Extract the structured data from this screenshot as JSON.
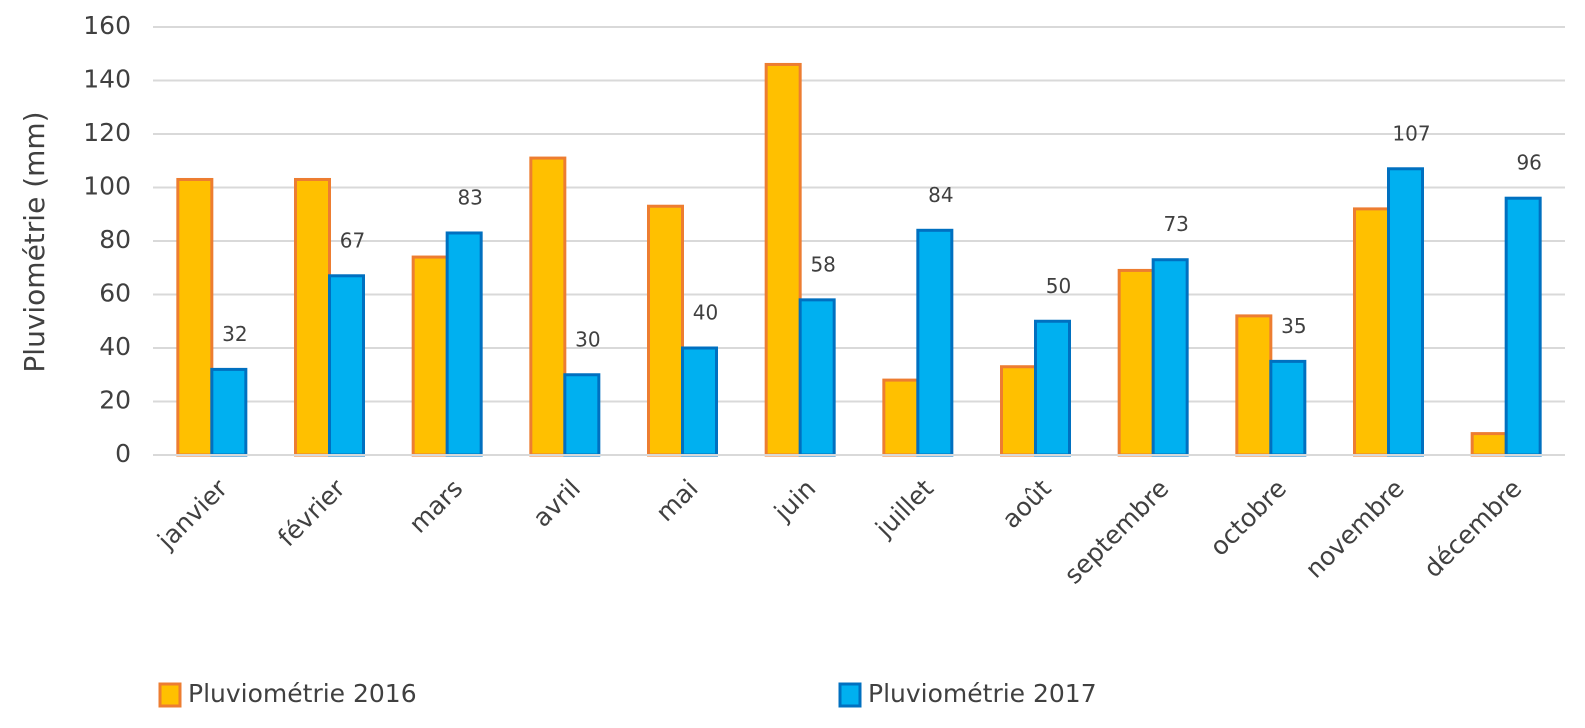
{
  "chart_data": {
    "type": "bar",
    "ylabel": "Pluviométrie (mm)",
    "categories": [
      "janvier",
      "février",
      "mars",
      "avril",
      "mai",
      "juin",
      "juillet",
      "août",
      "septembre",
      "octobre",
      "novembre",
      "décembre"
    ],
    "series": [
      {
        "name": "Pluviométrie 2016",
        "color": "#FFC000",
        "edgecolor": "#ED7D31",
        "data_labels": false,
        "values": [
          103,
          103,
          74,
          111,
          93,
          146,
          28,
          33,
          69,
          52,
          92,
          8
        ]
      },
      {
        "name": "Pluviométrie 2017",
        "color": "#00B0F0",
        "edgecolor": "#0070C0",
        "data_labels": true,
        "values": [
          32,
          67,
          83,
          30,
          40,
          58,
          84,
          50,
          73,
          35,
          107,
          96
        ]
      }
    ],
    "ylim": [
      0,
      160
    ],
    "yticks": [
      0,
      20,
      40,
      60,
      80,
      100,
      120,
      140,
      160
    ],
    "grid": true,
    "legend": "bottom"
  }
}
